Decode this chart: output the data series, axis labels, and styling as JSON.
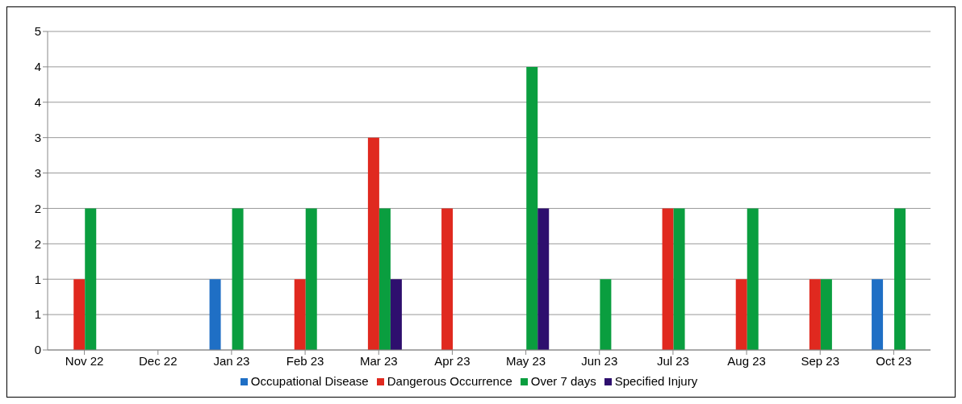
{
  "chart_data": {
    "type": "bar",
    "categories": [
      "Nov 22",
      "Dec 22",
      "Jan 23",
      "Feb 23",
      "Mar 23",
      "Apr 23",
      "May 23",
      "Jun 23",
      "Jul 23",
      "Aug 23",
      "Sep 23",
      "Oct 23"
    ],
    "series": [
      {
        "name": "Occupational Disease",
        "color": "#1f6fc5",
        "values": [
          0,
          0,
          1,
          0,
          0,
          0,
          0,
          0,
          0,
          0,
          0,
          1
        ]
      },
      {
        "name": "Dangerous Occurrence",
        "color": "#e0291f",
        "values": [
          1,
          0,
          0,
          1,
          3,
          2,
          0,
          0,
          2,
          1,
          1,
          0
        ]
      },
      {
        "name": "Over 7 days",
        "color": "#0a9e3f",
        "values": [
          2,
          0,
          2,
          2,
          2,
          0,
          4,
          1,
          2,
          2,
          1,
          2
        ]
      },
      {
        "name": "Specified Injury",
        "color": "#2e0f6e",
        "values": [
          0,
          0,
          0,
          0,
          1,
          0,
          2,
          0,
          0,
          0,
          0,
          0
        ]
      }
    ],
    "ylim": [
      0,
      4.5
    ],
    "yticks": [
      0,
      {
        "value": 0.5,
        "label": "1"
      },
      1,
      {
        "value": 1.5,
        "label": "2"
      },
      2,
      {
        "value": 2.5,
        "label": "3"
      },
      3,
      {
        "value": 3.5,
        "label": "4"
      },
      4,
      {
        "value": 4.5,
        "label": "5"
      }
    ],
    "grid": "y",
    "legend": "bottom"
  }
}
